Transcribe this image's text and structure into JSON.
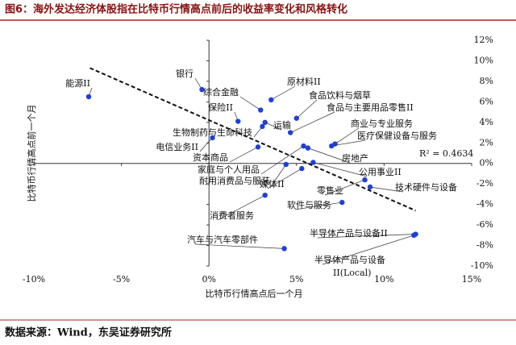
{
  "title": "图6：海外发达经济体股指在比特币行情高点前后的收益率变化和风格转化",
  "source": "数据来源：Wind，东吴证券研究所",
  "chart_data": {
    "type": "scatter",
    "xlabel": "比特币行情高点后一个月",
    "ylabel": "比特币行情高点前一个月",
    "annotation": "R² = 0.4634",
    "color": "#1f3fd6",
    "xlim": [
      -10,
      15
    ],
    "ylim": [
      -10,
      12
    ],
    "xticks": [
      {
        "value": -10,
        "label": "-10%"
      },
      {
        "value": -5,
        "label": "-5%"
      },
      {
        "value": 0,
        "label": "0%"
      },
      {
        "value": 5,
        "label": "5%"
      },
      {
        "value": 10,
        "label": "10%"
      },
      {
        "value": 15,
        "label": "15%"
      }
    ],
    "yticks": [
      {
        "value": -10,
        "label": "-10%"
      },
      {
        "value": -8,
        "label": "-8%"
      },
      {
        "value": -6,
        "label": "-6%"
      },
      {
        "value": -4,
        "label": "-4%"
      },
      {
        "value": -2,
        "label": "-2%"
      },
      {
        "value": 0,
        "label": "0%"
      },
      {
        "value": 2,
        "label": "2%"
      },
      {
        "value": 4,
        "label": "4%"
      },
      {
        "value": 6,
        "label": "6%"
      },
      {
        "value": 8,
        "label": "8%"
      },
      {
        "value": 10,
        "label": "10%"
      },
      {
        "value": 12,
        "label": "12%"
      }
    ],
    "trendline": {
      "x": [
        -6.8,
        11.8
      ],
      "y": [
        9.3,
        -4.6
      ]
    },
    "points": [
      {
        "name": "能源II",
        "x": -6.87,
        "y": 6.5
      },
      {
        "name": "银行",
        "x": -0.4,
        "y": 7.2
      },
      {
        "name": "综合金融",
        "x": 2.95,
        "y": 5.2
      },
      {
        "name": "原材料II",
        "x": 3.55,
        "y": 6.2
      },
      {
        "name": "保险II",
        "x": 1.66,
        "y": 4.1
      },
      {
        "name": "食品饮料与烟草",
        "x": 5.0,
        "y": 4.4
      },
      {
        "name": "食品与主要用品零售II",
        "x": 4.65,
        "y": 3.0
      },
      {
        "name": "运输",
        "x": 3.2,
        "y": 4.0
      },
      {
        "name": "生物制药与生命科技",
        "x": 3.05,
        "y": 3.6
      },
      {
        "name": "电信业务II",
        "x": 0.2,
        "y": 2.5
      },
      {
        "name": "商业与专业服务",
        "x": 7.2,
        "y": 1.9
      },
      {
        "name": "医疗保健设备与服务",
        "x": 7.0,
        "y": 1.7
      },
      {
        "name": "资本商品",
        "x": 2.8,
        "y": 1.6
      },
      {
        "name": "房地产",
        "x": 5.65,
        "y": 1.5
      },
      {
        "name": "家庭与个人用品",
        "x": 5.4,
        "y": 1.7
      },
      {
        "name": "耐用消费品与服装",
        "x": 4.4,
        "y": -0.1
      },
      {
        "name": "媒体II",
        "x": 5.3,
        "y": -0.5
      },
      {
        "name": "公用事业II",
        "x": 5.95,
        "y": 0.1
      },
      {
        "name": "零售业",
        "x": 8.9,
        "y": -1.6
      },
      {
        "name": "技术硬件与设备",
        "x": 9.2,
        "y": -2.3
      },
      {
        "name": "软件与服务",
        "x": 7.6,
        "y": -3.8
      },
      {
        "name": "消费者服务",
        "x": 3.2,
        "y": -3.1
      },
      {
        "name": "汽车与汽车零部件",
        "x": 4.3,
        "y": -8.3
      },
      {
        "name": "半导体产品与设备II",
        "x": 11.8,
        "y": -6.9
      },
      {
        "label_lines": [
          "半导体产品与设备",
          "II(Local)"
        ],
        "x": 11.7,
        "y": -7.0
      }
    ]
  }
}
